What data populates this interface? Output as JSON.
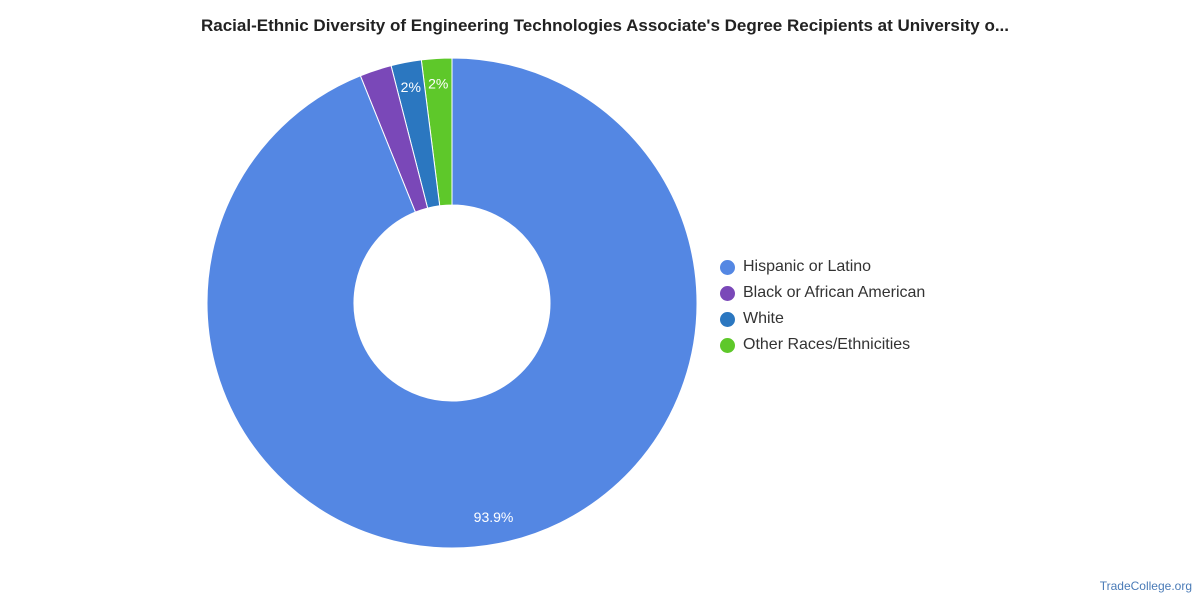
{
  "title": "Racial-Ethnic Diversity of Engineering Technologies Associate's Degree Recipients at University o...",
  "credit": "TradeCollege.org",
  "chart_data": {
    "type": "pie",
    "title": "Racial-Ethnic Diversity of Engineering Technologies Associate's Degree Recipients at University o...",
    "legend_position": "right",
    "donut": true,
    "slices": [
      {
        "name": "Other Races/Ethnicities",
        "value": 2.0,
        "label": "2%",
        "color": "#5ec82a"
      },
      {
        "name": "White",
        "value": 2.0,
        "label": "2%",
        "color": "#2b77c0"
      },
      {
        "name": "Black or African American",
        "value": 2.1,
        "label": "",
        "color": "#7a48b8"
      },
      {
        "name": "Hispanic or Latino",
        "value": 93.9,
        "label": "93.9%",
        "color": "#5487e3"
      }
    ]
  },
  "legend": [
    {
      "label": "Hispanic or Latino",
      "color": "#5487e3"
    },
    {
      "label": "Black or African American",
      "color": "#7a48b8"
    },
    {
      "label": "White",
      "color": "#2b77c0"
    },
    {
      "label": "Other Races/Ethnicities",
      "color": "#5ec82a"
    }
  ]
}
